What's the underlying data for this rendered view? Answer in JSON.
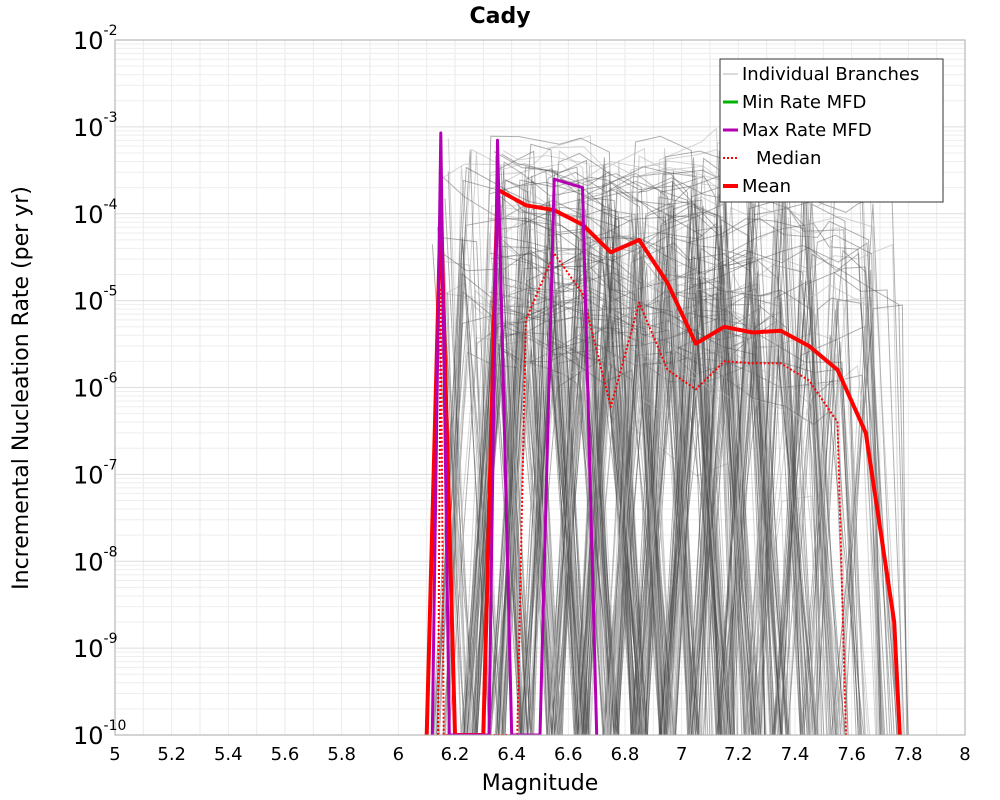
{
  "chart_data": {
    "type": "line",
    "title": "Cady",
    "xlabel": "Magnitude",
    "ylabel": "Incremental Nucleation Rate (per yr)",
    "xlim": [
      5,
      8
    ],
    "ylim": [
      1e-10,
      0.01
    ],
    "y_scale": "log",
    "x_ticks": [
      "5",
      "5.2",
      "5.4",
      "5.6",
      "5.8",
      "6",
      "6.2",
      "6.4",
      "6.6",
      "6.8",
      "7",
      "7.2",
      "7.4",
      "7.6",
      "7.8",
      "8"
    ],
    "y_ticks": [
      {
        "base": "10",
        "exp": "-10",
        "value": 1e-10
      },
      {
        "base": "10",
        "exp": "-9",
        "value": 1e-09
      },
      {
        "base": "10",
        "exp": "-8",
        "value": 1e-08
      },
      {
        "base": "10",
        "exp": "-7",
        "value": 1e-07
      },
      {
        "base": "10",
        "exp": "-6",
        "value": 1e-06
      },
      {
        "base": "10",
        "exp": "-5",
        "value": 1e-05
      },
      {
        "base": "10",
        "exp": "-4",
        "value": 0.0001
      },
      {
        "base": "10",
        "exp": "-3",
        "value": 0.001
      },
      {
        "base": "10",
        "exp": "-2",
        "value": 0.01
      }
    ],
    "grid": true,
    "legend_position": "top-right",
    "legend": [
      {
        "label": "Individual Branches",
        "color": "#b4b4b4",
        "style": "solid-thin"
      },
      {
        "label": "Min Rate MFD",
        "color": "#00b400",
        "style": "solid"
      },
      {
        "label": "Max Rate MFD",
        "color": "#b400b4",
        "style": "solid"
      },
      {
        "label": "Median",
        "color": "#ff0000",
        "style": "dotted"
      },
      {
        "label": "Mean",
        "color": "#ff0000",
        "style": "solid-thick"
      }
    ],
    "series": [
      {
        "name": "Mean",
        "color": "#ff0000",
        "points": [
          [
            6.1,
            1e-10
          ],
          [
            6.15,
            0.00013
          ],
          [
            6.2,
            1e-10
          ],
          [
            6.3,
            1e-10
          ],
          [
            6.35,
            0.00019
          ],
          [
            6.45,
            0.000125
          ],
          [
            6.55,
            0.00011
          ],
          [
            6.65,
            7.5e-05
          ],
          [
            6.75,
            3.6e-05
          ],
          [
            6.85,
            5e-05
          ],
          [
            6.95,
            1.6e-05
          ],
          [
            7.05,
            3.2e-06
          ],
          [
            7.15,
            5e-06
          ],
          [
            7.25,
            4.3e-06
          ],
          [
            7.35,
            4.5e-06
          ],
          [
            7.45,
            3e-06
          ],
          [
            7.55,
            1.6e-06
          ],
          [
            7.65,
            3e-07
          ],
          [
            7.75,
            2e-09
          ],
          [
            7.77,
            1e-10
          ]
        ]
      },
      {
        "name": "Median",
        "color": "#ff0000",
        "points": [
          [
            6.14,
            1e-10
          ],
          [
            6.15,
            1.4e-05
          ],
          [
            6.16,
            1e-10
          ],
          [
            6.42,
            1e-10
          ],
          [
            6.45,
            6e-06
          ],
          [
            6.55,
            3.5e-05
          ],
          [
            6.65,
            1.2e-05
          ],
          [
            6.75,
            6e-07
          ],
          [
            6.85,
            9.5e-06
          ],
          [
            6.95,
            1.6e-06
          ],
          [
            7.05,
            9.5e-07
          ],
          [
            7.15,
            2e-06
          ],
          [
            7.25,
            1.9e-06
          ],
          [
            7.35,
            1.9e-06
          ],
          [
            7.45,
            1.2e-06
          ],
          [
            7.55,
            4e-07
          ],
          [
            7.58,
            1e-10
          ]
        ]
      },
      {
        "name": "Max Rate MFD",
        "color": "#b400b4",
        "points": [
          [
            6.12,
            1e-10
          ],
          [
            6.15,
            0.00085
          ],
          [
            6.18,
            1e-10
          ],
          [
            6.32,
            1e-10
          ],
          [
            6.35,
            0.0007
          ],
          [
            6.4,
            1e-10
          ],
          [
            6.5,
            1e-10
          ],
          [
            6.55,
            0.00025
          ],
          [
            6.65,
            0.0002
          ],
          [
            6.7,
            1e-10
          ]
        ]
      }
    ]
  }
}
